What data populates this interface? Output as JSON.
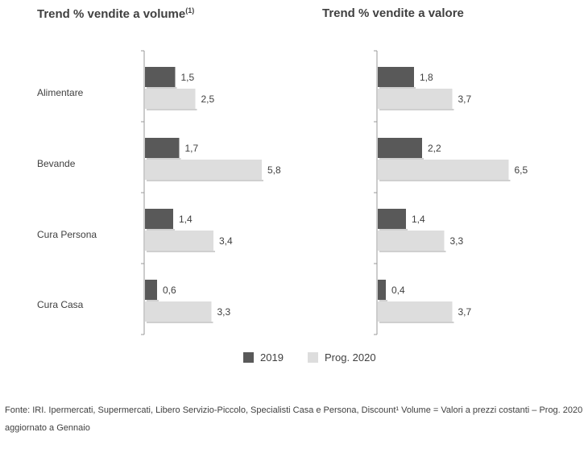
{
  "chart_data": [
    {
      "type": "bar",
      "orientation": "horizontal",
      "title": "Trend % vendite a volume",
      "title_sup": "(1)",
      "categories": [
        "Alimentare",
        "Bevande",
        "Cura Persona",
        "Cura Casa"
      ],
      "series": [
        {
          "name": "2019",
          "values": [
            1.5,
            1.7,
            1.4,
            0.6
          ],
          "labels": [
            "1,5",
            "1,7",
            "1,4",
            "0,6"
          ]
        },
        {
          "name": "Prog. 2020",
          "values": [
            2.5,
            5.8,
            3.4,
            3.3
          ],
          "labels": [
            "2,5",
            "5,8",
            "3,4",
            "3,3"
          ]
        }
      ]
    },
    {
      "type": "bar",
      "orientation": "horizontal",
      "title": "Trend % vendite a valore",
      "title_sup": "",
      "categories": [
        "Alimentare",
        "Bevande",
        "Cura Persona",
        "Cura Casa"
      ],
      "series": [
        {
          "name": "2019",
          "values": [
            1.8,
            2.2,
            1.4,
            0.4
          ],
          "labels": [
            "1,8",
            "2,2",
            "1,4",
            "0,4"
          ]
        },
        {
          "name": "Prog. 2020",
          "values": [
            3.7,
            6.5,
            3.3,
            3.7
          ],
          "labels": [
            "3,7",
            "6,5",
            "3,3",
            "3,7"
          ]
        }
      ]
    }
  ],
  "legend": [
    {
      "label": "2019",
      "color": "#595959"
    },
    {
      "label": "Prog. 2020",
      "color": "#dddddd"
    }
  ],
  "source": "Fonte: IRI. Ipermercati, Supermercati, Libero Servizio-Piccolo, Specialisti Casa e Persona, Discount¹ Volume = Valori a prezzi costanti – Prog. 2020 aggiornato a Gennaio"
}
